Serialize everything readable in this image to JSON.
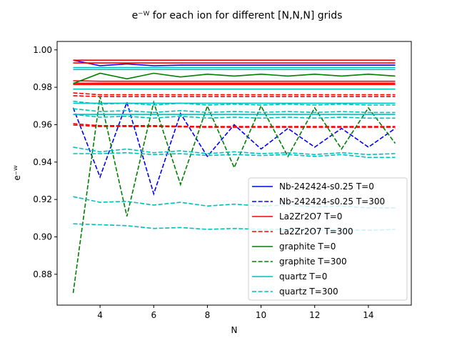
{
  "chart_data": {
    "type": "line",
    "title": "e⁻ᵂ for each ion for different [N,N,N] grids",
    "xlabel": "N",
    "ylabel": "e⁻ᵂ",
    "xlim": [
      2.4,
      15.6
    ],
    "ylim": [
      0.8635,
      1.0045
    ],
    "xticks": [
      4,
      6,
      8,
      10,
      12,
      14
    ],
    "yticks": [
      0.88,
      0.9,
      0.92,
      0.94,
      0.96,
      0.98,
      1.0
    ],
    "ytick_labels": [
      "0.88",
      "0.90",
      "0.92",
      "0.94",
      "0.96",
      "0.98",
      "1.00"
    ],
    "grid": false,
    "legend_position": "lower-right",
    "legend": [
      {
        "label": "Nb-242424-s0.25 T=0",
        "color": "#0000ff",
        "style": "solid"
      },
      {
        "label": "Nb-242424-s0.25 T=300",
        "color": "#0000ff",
        "style": "dashed"
      },
      {
        "label": "La2Zr2O7 T=0",
        "color": "#ff0000",
        "style": "solid"
      },
      {
        "label": "La2Zr2O7 T=300",
        "color": "#ff0000",
        "style": "dashed"
      },
      {
        "label": "graphite T=0",
        "color": "#008000",
        "style": "solid"
      },
      {
        "label": "graphite T=300",
        "color": "#008000",
        "style": "dashed"
      },
      {
        "label": "quartz T=0",
        "color": "#00bfbf",
        "style": "solid"
      },
      {
        "label": "quartz T=300",
        "color": "#00bfbf",
        "style": "dashed"
      }
    ],
    "x": [
      3,
      4,
      5,
      6,
      7,
      8,
      9,
      10,
      11,
      12,
      13,
      14,
      15
    ],
    "series": [
      {
        "color": "#0000ff",
        "style": "solid",
        "values": [
          0.9945,
          0.9915,
          0.9925,
          0.9915,
          0.9918,
          0.9918,
          0.9918,
          0.9918,
          0.9918,
          0.9918,
          0.9918,
          0.9918,
          0.9918
        ]
      },
      {
        "color": "#0000ff",
        "style": "dashed",
        "values": [
          0.969,
          0.932,
          0.972,
          0.923,
          0.966,
          0.943,
          0.96,
          0.947,
          0.958,
          0.948,
          0.958,
          0.948,
          0.958
        ]
      },
      {
        "color": "#ff0000",
        "style": "solid",
        "values": [
          0.9945,
          0.9945,
          0.9945,
          0.9945,
          0.9945,
          0.9945,
          0.9945,
          0.9945,
          0.9945,
          0.9945,
          0.9945,
          0.9945,
          0.9945
        ]
      },
      {
        "color": "#ff0000",
        "style": "solid",
        "values": [
          0.993,
          0.993,
          0.993,
          0.993,
          0.993,
          0.993,
          0.993,
          0.993,
          0.993,
          0.993,
          0.993,
          0.993,
          0.993
        ]
      },
      {
        "color": "#ff0000",
        "style": "solid",
        "values": [
          0.9835,
          0.9832,
          0.9832,
          0.9832,
          0.9832,
          0.9832,
          0.9832,
          0.9832,
          0.9832,
          0.9832,
          0.9832,
          0.9832,
          0.9832
        ]
      },
      {
        "color": "#ff0000",
        "style": "solid",
        "values": [
          0.9822,
          0.9822,
          0.9822,
          0.9822,
          0.9822,
          0.9822,
          0.9822,
          0.9822,
          0.9822,
          0.9822,
          0.9822,
          0.9822,
          0.9822
        ]
      },
      {
        "color": "#ff0000",
        "style": "solid",
        "values": [
          0.9815,
          0.9815,
          0.9815,
          0.9815,
          0.9815,
          0.9815,
          0.9815,
          0.9815,
          0.9815,
          0.9815,
          0.9815,
          0.9815,
          0.9815
        ]
      },
      {
        "color": "#ff0000",
        "style": "dashed",
        "values": [
          0.977,
          0.976,
          0.976,
          0.976,
          0.976,
          0.976,
          0.976,
          0.976,
          0.976,
          0.976,
          0.976,
          0.976,
          0.976
        ]
      },
      {
        "color": "#ff0000",
        "style": "dashed",
        "values": [
          0.9755,
          0.975,
          0.975,
          0.975,
          0.975,
          0.975,
          0.975,
          0.975,
          0.975,
          0.975,
          0.975,
          0.975,
          0.975
        ]
      },
      {
        "color": "#ff0000",
        "style": "dashed",
        "values": [
          0.9605,
          0.9595,
          0.9595,
          0.9595,
          0.9592,
          0.959,
          0.959,
          0.959,
          0.959,
          0.959,
          0.959,
          0.959,
          0.959
        ]
      },
      {
        "color": "#ff0000",
        "style": "dashed",
        "values": [
          0.9598,
          0.959,
          0.959,
          0.959,
          0.9588,
          0.9586,
          0.9586,
          0.9586,
          0.9586,
          0.9586,
          0.9586,
          0.9586,
          0.9586
        ]
      },
      {
        "color": "#008000",
        "style": "solid",
        "values": [
          0.982,
          0.9875,
          0.9845,
          0.9875,
          0.9855,
          0.987,
          0.986,
          0.987,
          0.986,
          0.987,
          0.986,
          0.987,
          0.986
        ]
      },
      {
        "color": "#008000",
        "style": "dashed",
        "values": [
          0.87,
          0.975,
          0.911,
          0.972,
          0.928,
          0.97,
          0.937,
          0.97,
          0.943,
          0.969,
          0.947,
          0.969,
          0.95
        ]
      },
      {
        "color": "#00bfbf",
        "style": "solid",
        "values": [
          0.9905,
          0.9905,
          0.9905,
          0.9905,
          0.9905,
          0.9905,
          0.9905,
          0.9905,
          0.9905,
          0.9905,
          0.9905,
          0.9905,
          0.9905
        ]
      },
      {
        "color": "#00bfbf",
        "style": "solid",
        "values": [
          0.9895,
          0.9895,
          0.9895,
          0.9895,
          0.9895,
          0.9895,
          0.9895,
          0.9895,
          0.9895,
          0.9895,
          0.9895,
          0.9895,
          0.9895
        ]
      },
      {
        "color": "#00bfbf",
        "style": "solid",
        "values": [
          0.979,
          0.979,
          0.979,
          0.979,
          0.979,
          0.979,
          0.979,
          0.979,
          0.979,
          0.979,
          0.979,
          0.979,
          0.979
        ]
      },
      {
        "color": "#00bfbf",
        "style": "solid",
        "values": [
          0.9715,
          0.9715,
          0.9715,
          0.9715,
          0.9715,
          0.9715,
          0.9715,
          0.9715,
          0.9715,
          0.9715,
          0.9715,
          0.9715,
          0.9715
        ]
      },
      {
        "color": "#00bfbf",
        "style": "solid",
        "values": [
          0.9655,
          0.9655,
          0.9655,
          0.9655,
          0.9655,
          0.9655,
          0.9655,
          0.9655,
          0.9655,
          0.9655,
          0.9655,
          0.9655,
          0.9655
        ]
      },
      {
        "color": "#00bfbf",
        "style": "dashed",
        "values": [
          0.9725,
          0.971,
          0.9715,
          0.9705,
          0.9715,
          0.9705,
          0.971,
          0.9705,
          0.971,
          0.9705,
          0.971,
          0.9705,
          0.9705
        ]
      },
      {
        "color": "#00bfbf",
        "style": "dashed",
        "values": [
          0.9685,
          0.967,
          0.9675,
          0.9665,
          0.9675,
          0.9665,
          0.967,
          0.9665,
          0.967,
          0.9665,
          0.967,
          0.9665,
          0.9665
        ]
      },
      {
        "color": "#00bfbf",
        "style": "dashed",
        "values": [
          0.9655,
          0.964,
          0.9645,
          0.9635,
          0.9645,
          0.9635,
          0.964,
          0.9635,
          0.964,
          0.9635,
          0.964,
          0.9635,
          0.9635
        ]
      },
      {
        "color": "#00bfbf",
        "style": "dashed",
        "values": [
          0.948,
          0.9455,
          0.947,
          0.945,
          0.946,
          0.9445,
          0.9455,
          0.9445,
          0.945,
          0.944,
          0.945,
          0.944,
          0.9445
        ]
      },
      {
        "color": "#00bfbf",
        "style": "dashed",
        "values": [
          0.9445,
          0.9445,
          0.945,
          0.944,
          0.9445,
          0.9435,
          0.944,
          0.9435,
          0.944,
          0.943,
          0.944,
          0.9425,
          0.9425
        ]
      },
      {
        "color": "#00bfbf",
        "style": "dashed",
        "values": [
          0.9215,
          0.9185,
          0.919,
          0.917,
          0.9185,
          0.9165,
          0.9175,
          0.9165,
          0.917,
          0.916,
          0.9165,
          0.9155,
          0.9155
        ]
      },
      {
        "color": "#00bfbf",
        "style": "dashed",
        "values": [
          0.907,
          0.9065,
          0.906,
          0.9045,
          0.905,
          0.904,
          0.9045,
          0.904,
          0.904,
          0.9035,
          0.904,
          0.9035,
          0.904
        ]
      }
    ]
  }
}
